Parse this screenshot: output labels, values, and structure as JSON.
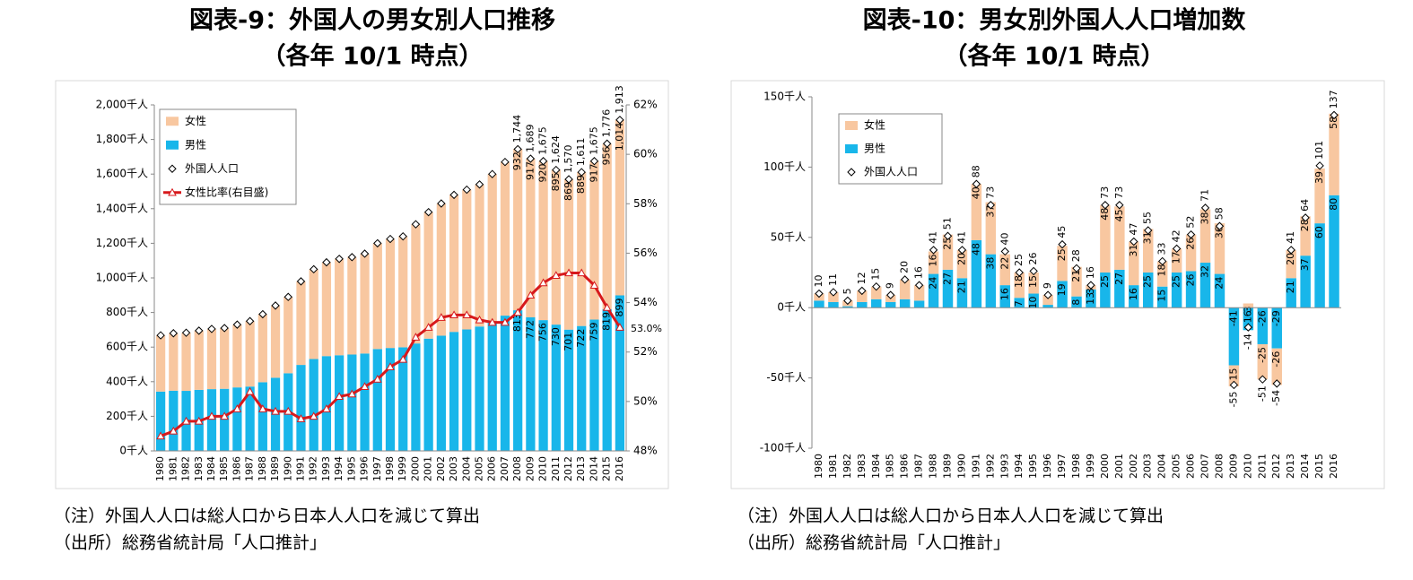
{
  "chart_data": [
    {
      "type": "bar",
      "stacked": true,
      "title": "図表-9：外国人の男女別人口推移",
      "subtitle": "（各年 10/1 時点）",
      "notes": [
        "（注）外国人人口は総人口から日本人人口を減じて算出",
        "（出所）総務省統計局「人口推計」"
      ],
      "categories": [
        "1980",
        "1981",
        "1982",
        "1983",
        "1984",
        "1985",
        "1986",
        "1987",
        "1988",
        "1989",
        "1990",
        "1991",
        "1992",
        "1993",
        "1994",
        "1995",
        "1996",
        "1997",
        "1998",
        "1999",
        "2000",
        "2001",
        "2002",
        "2003",
        "2004",
        "2005",
        "2006",
        "2007",
        "2008",
        "2009",
        "2010",
        "2011",
        "2012",
        "2013",
        "2014",
        "2015",
        "2016"
      ],
      "ylim": [
        0,
        2000
      ],
      "yticks": [
        {
          "value": 0,
          "label": "0千人"
        },
        {
          "value": 200,
          "label": "200千人"
        },
        {
          "value": 400,
          "label": "400千人"
        },
        {
          "value": 600,
          "label": "600千人"
        },
        {
          "value": 800,
          "label": "800千人"
        },
        {
          "value": 1000,
          "label": "1,000千人"
        },
        {
          "value": 1200,
          "label": "1,200千人"
        },
        {
          "value": 1400,
          "label": "1,400千人"
        },
        {
          "value": 1600,
          "label": "1,600千人"
        },
        {
          "value": 1800,
          "label": "1,800千人"
        },
        {
          "value": 2000,
          "label": "2,000千人"
        }
      ],
      "y2lim": [
        48,
        62
      ],
      "y2ticks": [
        {
          "value": 48,
          "label": "48%"
        },
        {
          "value": 50,
          "label": "50%"
        },
        {
          "value": 52,
          "label": "52%"
        },
        {
          "value": 54,
          "label": "54%"
        },
        {
          "value": 56,
          "label": "56%"
        },
        {
          "value": 58,
          "label": "58%"
        },
        {
          "value": 60,
          "label": "60%"
        },
        {
          "value": 62,
          "label": "62%"
        }
      ],
      "series": [
        {
          "name": "女性",
          "type": "bar",
          "color": "#f8c7a0",
          "values": [
            325,
            332,
            336,
            342,
            348,
            351,
            363,
            378,
            393,
            417,
            441,
            483,
            519,
            542,
            557,
            563,
            577,
            611,
            630,
            641,
            689,
            731,
            764,
            792,
            808,
            821,
            851,
            888,
            932,
            917,
            920,
            895,
            869,
            889,
            917,
            956,
            1014
          ],
          "value_labels": [
            null,
            null,
            null,
            null,
            null,
            null,
            null,
            null,
            null,
            null,
            null,
            null,
            null,
            null,
            null,
            null,
            null,
            null,
            null,
            null,
            null,
            null,
            null,
            null,
            null,
            null,
            null,
            null,
            "932",
            "917",
            "920",
            "895",
            "869",
            "889",
            "917",
            "956",
            "1,014"
          ]
        },
        {
          "name": "男性",
          "type": "bar",
          "color": "#18b6ea",
          "values": [
            343,
            348,
            347,
            353,
            357,
            359,
            367,
            372,
            397,
            423,
            449,
            497,
            531,
            548,
            553,
            557,
            563,
            589,
            595,
            599,
            621,
            649,
            666,
            688,
            702,
            719,
            749,
            782,
            813,
            772,
            756,
            730,
            701,
            722,
            759,
            819,
            899
          ],
          "value_labels": [
            null,
            null,
            null,
            null,
            null,
            null,
            null,
            null,
            null,
            null,
            null,
            null,
            null,
            null,
            null,
            null,
            null,
            null,
            null,
            null,
            null,
            null,
            null,
            null,
            null,
            null,
            null,
            null,
            "813",
            "772",
            "756",
            "730",
            "701",
            "722",
            "759",
            "819",
            "899"
          ]
        },
        {
          "name": "外国人人口",
          "type": "marker",
          "color": "#000000",
          "label_color": "#000000",
          "values": [
            668,
            680,
            683,
            695,
            705,
            710,
            730,
            750,
            790,
            840,
            890,
            980,
            1050,
            1090,
            1110,
            1120,
            1140,
            1200,
            1225,
            1240,
            1310,
            1380,
            1430,
            1480,
            1510,
            1540,
            1600,
            1670,
            1744,
            1689,
            1675,
            1624,
            1570,
            1611,
            1675,
            1776,
            1913
          ],
          "value_labels": [
            null,
            null,
            null,
            null,
            null,
            null,
            null,
            null,
            null,
            null,
            null,
            null,
            null,
            null,
            null,
            null,
            null,
            null,
            null,
            null,
            null,
            null,
            null,
            null,
            null,
            null,
            null,
            null,
            "1,744",
            "1,689",
            "1,675",
            "1,624",
            "1,570",
            "1,611",
            "1,675",
            "1,776",
            "1,913"
          ]
        },
        {
          "name": "女性比率(右目盛)",
          "type": "line",
          "axis": "y2",
          "color": "#d7191c",
          "label_color": "#d7191c",
          "values": [
            48.6,
            48.8,
            49.2,
            49.2,
            49.4,
            49.4,
            49.7,
            50.4,
            49.7,
            49.6,
            49.6,
            49.3,
            49.4,
            49.7,
            50.2,
            50.3,
            50.6,
            50.9,
            51.4,
            51.7,
            52.6,
            53.0,
            53.4,
            53.5,
            53.5,
            53.3,
            53.2,
            53.2,
            53.6,
            54.3,
            54.8,
            55.1,
            55.2,
            55.2,
            54.7,
            53.8,
            53.0
          ],
          "value_labels": [
            null,
            null,
            null,
            null,
            null,
            null,
            null,
            null,
            null,
            null,
            null,
            null,
            null,
            null,
            null,
            null,
            null,
            null,
            null,
            null,
            null,
            null,
            null,
            null,
            null,
            null,
            null,
            null,
            null,
            null,
            null,
            null,
            null,
            null,
            null,
            null,
            "53.0%"
          ]
        }
      ]
    },
    {
      "type": "bar",
      "stacked": true,
      "title": "図表-10：男女別外国人人口増加数",
      "subtitle": "（各年 10/1 時点）",
      "notes": [
        "（注）外国人人口は総人口から日本人人口を減じて算出",
        "（出所）総務省統計局「人口推計」"
      ],
      "categories": [
        "1980",
        "1981",
        "1982",
        "1983",
        "1984",
        "1985",
        "1986",
        "1987",
        "1988",
        "1989",
        "1990",
        "1991",
        "1992",
        "1993",
        "1994",
        "1995",
        "1996",
        "1997",
        "1998",
        "1999",
        "2000",
        "2001",
        "2002",
        "2003",
        "2004",
        "2005",
        "2006",
        "2007",
        "2008",
        "2009",
        "2010",
        "2011",
        "2012",
        "2013",
        "2014",
        "2015",
        "2016"
      ],
      "ylim": [
        -100,
        150
      ],
      "yticks": [
        {
          "value": -100,
          "label": "-100千人"
        },
        {
          "value": -50,
          "label": "-50千人"
        },
        {
          "value": 0,
          "label": "0千人"
        },
        {
          "value": 50,
          "label": "50千人"
        },
        {
          "value": 100,
          "label": "100千人"
        },
        {
          "value": 150,
          "label": "150千人"
        }
      ],
      "series": [
        {
          "name": "女性",
          "type": "bar",
          "color": "#f8c7a0",
          "values": [
            5,
            7,
            4,
            8,
            9,
            5,
            14,
            11,
            16,
            25,
            20,
            40,
            37,
            22,
            18,
            15,
            7,
            25,
            21,
            3,
            48,
            45,
            31,
            31,
            18,
            17,
            26,
            38,
            36,
            -15,
            3,
            -25,
            -26,
            20,
            28,
            39,
            58
          ],
          "value_labels": [
            null,
            null,
            null,
            null,
            null,
            null,
            null,
            null,
            "16",
            "25",
            "20",
            "40",
            "37",
            "22",
            "18",
            "15",
            null,
            "25",
            "21",
            "3",
            "48",
            "45",
            "31",
            "31",
            "18",
            "17",
            "26",
            "38",
            "36",
            "-15",
            "3",
            "-25",
            "-26",
            "20",
            "28",
            "39",
            "58"
          ]
        },
        {
          "name": "男性",
          "type": "bar",
          "color": "#18b6ea",
          "values": [
            5,
            4,
            1,
            4,
            6,
            4,
            6,
            5,
            24,
            27,
            21,
            48,
            38,
            16,
            7,
            10,
            2,
            19,
            8,
            13,
            25,
            27,
            16,
            25,
            15,
            25,
            26,
            32,
            24,
            -41,
            -16,
            -26,
            -29,
            21,
            37,
            60,
            80
          ],
          "value_labels": [
            null,
            null,
            null,
            null,
            null,
            null,
            null,
            null,
            "24",
            "27",
            "21",
            "48",
            "38",
            "16",
            "7",
            "10",
            null,
            "19",
            "8",
            "13",
            "25",
            "27",
            "16",
            "25",
            "15",
            "25",
            "26",
            "32",
            "24",
            "-41",
            "-16",
            "-26",
            "-29",
            "21",
            "37",
            "60",
            "80"
          ]
        },
        {
          "name": "外国人人口",
          "type": "marker",
          "color": "#000000",
          "label_color": "#c00000",
          "data_labels": true,
          "values": [
            10,
            11,
            5,
            12,
            15,
            9,
            20,
            16,
            41,
            51,
            41,
            88,
            73,
            40,
            25,
            26,
            9,
            45,
            28,
            16,
            73,
            73,
            47,
            55,
            33,
            42,
            52,
            71,
            58,
            -55,
            -14,
            -51,
            -54,
            41,
            64,
            101,
            137
          ]
        }
      ]
    }
  ]
}
